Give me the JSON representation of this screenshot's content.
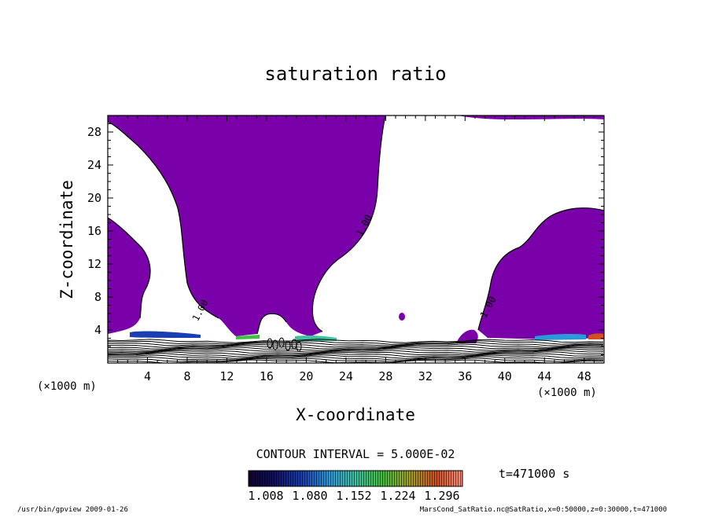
{
  "chart_data": {
    "type": "heatmap",
    "title": "saturation ratio",
    "xlabel": "X-coordinate",
    "ylabel": "Z-coordinate",
    "x_unit": "(×1000 m)",
    "z_unit": "(×1000 m)",
    "xlim": [
      0,
      50
    ],
    "zlim": [
      0,
      30
    ],
    "x_ticks": [
      4,
      8,
      12,
      16,
      20,
      24,
      28,
      32,
      36,
      40,
      44,
      48
    ],
    "z_ticks": [
      4,
      8,
      12,
      16,
      20,
      24,
      28
    ],
    "contour_labels": [
      {
        "text": "1.00",
        "x": 9.6,
        "z": 6.2
      },
      {
        "text": "1.00",
        "x": 26.1,
        "z": 16.5
      },
      {
        "text": "1.00",
        "x": 38.6,
        "z": 6.6
      }
    ],
    "contour_interval": "CONTOUR INTERVAL = 5.000E-02",
    "time_label": "t=471000 s",
    "colorbar_ticks": [
      "1.008",
      "1.080",
      "1.152",
      "1.224",
      "1.296"
    ],
    "colorbar_range": [
      1.008,
      1.296
    ]
  },
  "footer": {
    "left": "/usr/bin/gpview  2009-01-26",
    "right": "MarsCond_SatRatio.nc@SatRatio,x=0:50000,z=0:30000,t=471000"
  },
  "colors": {
    "subsaturated_fill": "#7a00aa",
    "background": "#ffffff"
  }
}
